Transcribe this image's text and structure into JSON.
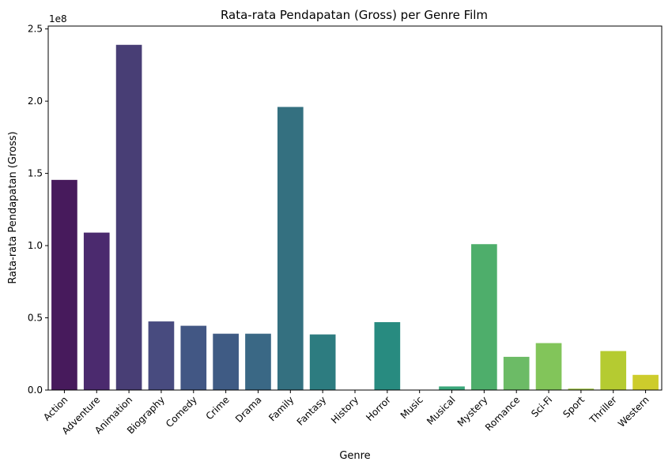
{
  "chart_data": {
    "type": "bar",
    "title": "Rata-rata Pendapatan (Gross) per Genre Film",
    "xlabel": "Genre",
    "ylabel": "Rata-rata Pendapatan (Gross)",
    "y_offset_label": "1e8",
    "ylim": [
      0,
      252000000
    ],
    "yticks": [
      0,
      50000000,
      100000000,
      150000000,
      200000000,
      250000000
    ],
    "ytick_labels": [
      "0.0",
      "0.5",
      "1.0",
      "1.5",
      "2.0",
      "2.5"
    ],
    "categories": [
      "Action",
      "Adventure",
      "Animation",
      "Biography",
      "Comedy",
      "Crime",
      "Drama",
      "Family",
      "Fantasy",
      "History",
      "Horror",
      "Music",
      "Musical",
      "Mystery",
      "Romance",
      "Sci-Fi",
      "Sport",
      "Thriller",
      "Western"
    ],
    "values": [
      145500000,
      109000000,
      239000000,
      47500000,
      44500000,
      39000000,
      39000000,
      196000000,
      38500000,
      0,
      47000000,
      0,
      2500000,
      101000000,
      23000000,
      32500000,
      1000000,
      27000000,
      10500000
    ],
    "colors": [
      "#471a5c",
      "#4b2a6e",
      "#483e75",
      "#484b7f",
      "#425784",
      "#3f5b84",
      "#3a6885",
      "#347080",
      "#2d7c80",
      "#2a8684",
      "#288b80",
      "#2e9c7e",
      "#3aa77b",
      "#4eae6b",
      "#6cbb66",
      "#82c55a",
      "#a3c84a",
      "#b5cb31",
      "#cdcc2c"
    ],
    "grid": false,
    "legend": "none"
  }
}
